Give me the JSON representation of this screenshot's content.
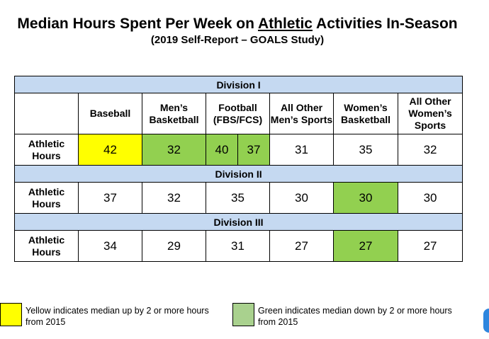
{
  "title": {
    "pre": "Median Hours Spent Per Week on ",
    "underlined": "Athletic",
    "post": " Activities In-Season"
  },
  "subtitle": "(2019 Self-Report – GOALS Study)",
  "colors": {
    "division_header": "#c5d9f1",
    "yellow": "#ffff00",
    "green": "#92d050"
  },
  "chart_data": {
    "type": "table",
    "columns": [
      "Baseball",
      "Men’s Basketball",
      "Football (FBS/FCS)",
      "All Other Men’s Sports",
      "Women’s Basketball",
      "All Other Women’s Sports"
    ],
    "row_label": "Athletic Hours",
    "divisions": [
      {
        "name": "Division I",
        "values": [
          "42",
          "32",
          "40",
          "37",
          "31",
          "35",
          "32"
        ],
        "highlights": [
          "yellow",
          "green",
          "green",
          "green",
          "",
          "",
          ""
        ]
      },
      {
        "name": "Division II",
        "values": [
          "37",
          "32",
          "35",
          "30",
          "30",
          "30"
        ],
        "highlights": [
          "",
          "",
          "",
          "",
          "green",
          ""
        ]
      },
      {
        "name": "Division III",
        "values": [
          "34",
          "29",
          "31",
          "27",
          "27",
          "27"
        ],
        "highlights": [
          "",
          "",
          "",
          "",
          "green",
          ""
        ]
      }
    ]
  },
  "legend": {
    "yellow": "Yellow indicates median up by 2 or more hours from 2015",
    "green": "Green indicates median down by 2 or more hours from 2015"
  }
}
